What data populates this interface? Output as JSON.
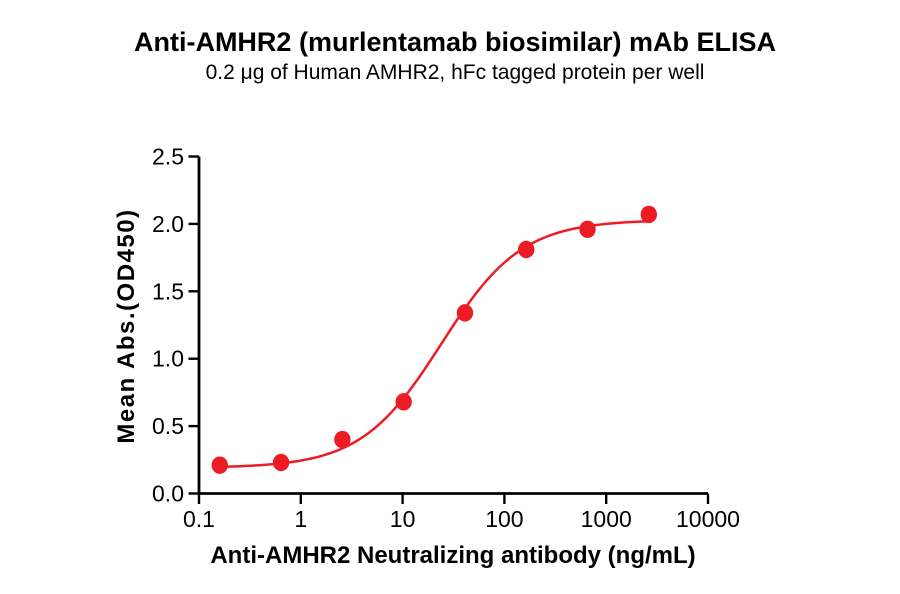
{
  "chart_data": {
    "type": "scatter",
    "title": "Anti-AMHR2 (murlentamab biosimilar) mAb ELISA",
    "subtitle": "0.2 μg of Human AMHR2, hFc tagged protein per well",
    "xlabel": "Anti-AMHR2 Neutralizing antibody (ng/mL)",
    "ylabel": "Mean Abs.(OD450)",
    "x_scale": "log10",
    "xlim": [
      0.1,
      10000
    ],
    "ylim": [
      0.0,
      2.5
    ],
    "grid": false,
    "legend": "none",
    "x_ticks": {
      "values": [
        0.1,
        1,
        10,
        100,
        1000,
        10000
      ],
      "labels": [
        "0.1",
        "1",
        "10",
        "100",
        "1000",
        "10000"
      ]
    },
    "y_ticks": {
      "values": [
        0.0,
        0.5,
        1.0,
        1.5,
        2.0,
        2.5
      ],
      "labels": [
        "0.0",
        "0.5",
        "1.0",
        "1.5",
        "2.0",
        "2.5"
      ]
    },
    "series": [
      {
        "marker_color": "#ED1C24",
        "line_color": "#ED1C24",
        "x": [
          0.16,
          0.64,
          2.56,
          10.24,
          40.96,
          163.84,
          655.36,
          2621.44
        ],
        "y": [
          0.21,
          0.23,
          0.4,
          0.68,
          1.34,
          1.81,
          1.96,
          2.07
        ],
        "fit_curve": {
          "model": "4PL-sigmoid",
          "bottom": 0.19,
          "top": 2.03,
          "ec50": 24,
          "hill": 1.1,
          "x_start": 0.16,
          "x_end": 2621.44
        }
      }
    ]
  }
}
